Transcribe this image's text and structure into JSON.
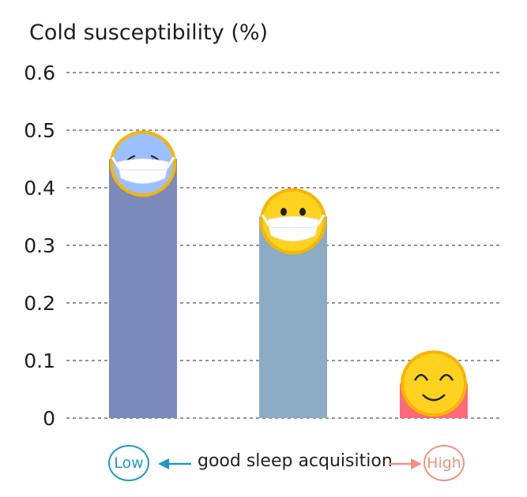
{
  "chart_data": {
    "type": "bar",
    "title": "Cold susceptibility (%)",
    "categories": [
      "Low",
      "",
      "High"
    ],
    "values": [
      0.45,
      0.35,
      0.06
    ],
    "ylim": [
      0,
      0.6
    ],
    "yticks": [
      "0",
      "0.1",
      "0.2",
      "0.3",
      "0.4",
      "0.5",
      "0.6"
    ],
    "grid": true,
    "bar_colors": [
      "#7b8aba",
      "#8cabc5",
      "#ff6a79"
    ],
    "icons": [
      "sick-face-mask-icon",
      "masked-face-icon",
      "smiling-face-icon"
    ]
  },
  "legend": {
    "low_label": "Low",
    "high_label": "High",
    "text": "good sleep acquisition",
    "low_color": "#1f9ac2",
    "high_color": "#f2937f"
  }
}
